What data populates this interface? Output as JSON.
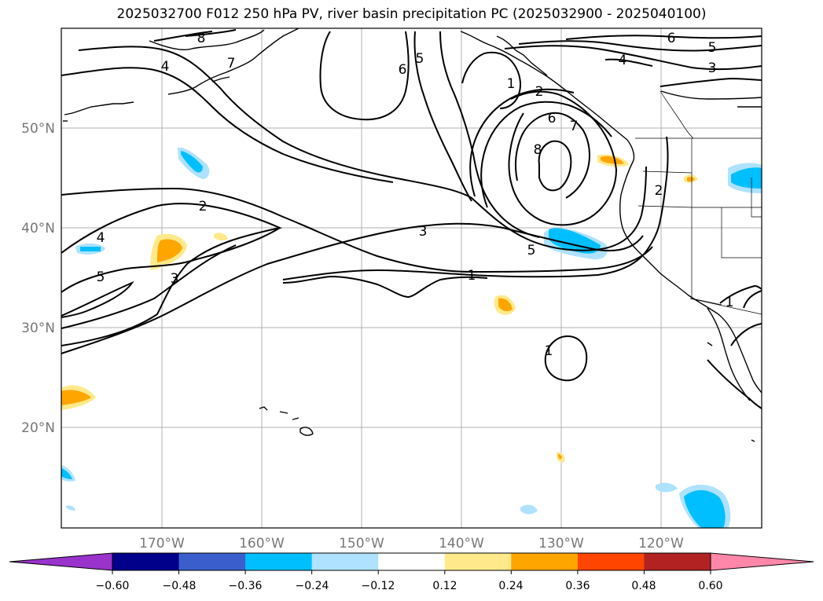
{
  "title": "2025032700 F012 250 hPa PV, river basin precipitation PC (2025032900 - 2025040100)",
  "map": {
    "lat_labels": [
      "50°N",
      "40°N",
      "30°N",
      "20°N"
    ],
    "lon_labels": [
      "170°W",
      "160°W",
      "150°W",
      "140°W",
      "130°W",
      "120°W"
    ],
    "contour_labels": [
      "8",
      "7",
      "4",
      "6",
      "5",
      "1",
      "2",
      "6",
      "7",
      "8",
      "6",
      "5",
      "4",
      "3",
      "2",
      "3",
      "5",
      "1",
      "4",
      "5",
      "3",
      "1",
      "1",
      "2"
    ],
    "contour_color": "#000000",
    "coastline_color": "#000000",
    "grid_color": "#b0b0b0"
  },
  "colorbar": {
    "colors": [
      "#9933cc",
      "#00008b",
      "#3a5fcd",
      "#00bfff",
      "#aee2ff",
      "#ffffff",
      "#ffe98a",
      "#ffa500",
      "#ff4500",
      "#b22222",
      "#ff88aa"
    ],
    "tick_labels": [
      "−0.60",
      "−0.48",
      "−0.36",
      "−0.24",
      "−0.12",
      "0.12",
      "0.24",
      "0.36",
      "0.48",
      "0.60"
    ]
  }
}
